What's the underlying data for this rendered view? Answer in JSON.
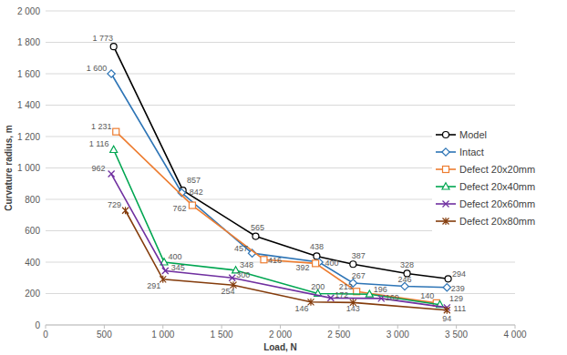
{
  "chart_data": {
    "type": "line",
    "x_label": "Load, N",
    "y_label": "Curvature radius, m",
    "xlim": [
      0,
      4000
    ],
    "ylim": [
      0,
      2000
    ],
    "xticks": [
      0,
      500,
      {
        "value": 1000,
        "label": "1 000"
      },
      {
        "value": 1500,
        "label": "1 500"
      },
      {
        "value": 2000,
        "label": "2 000"
      },
      {
        "value": 2500,
        "label": "2 500"
      },
      {
        "value": 3000,
        "label": "3 000"
      },
      {
        "value": 3500,
        "label": "3 500"
      },
      {
        "value": 4000,
        "label": "4 000"
      }
    ],
    "yticks": [
      0,
      200,
      400,
      600,
      800,
      {
        "value": 1000,
        "label": "1 000"
      },
      {
        "value": 1200,
        "label": "1 200"
      },
      {
        "value": 1400,
        "label": "1 400"
      },
      {
        "value": 1600,
        "label": "1 600"
      },
      {
        "value": 1800,
        "label": "1 800"
      },
      {
        "value": 2000,
        "label": "2 000"
      }
    ],
    "grid": true,
    "legend": "right",
    "data_labels": true,
    "series": [
      {
        "name": "Model",
        "color": "#000000",
        "marker": "circle",
        "line_style": "solid",
        "x": [
          580,
          1170,
          1790,
          2310,
          2620,
          3080,
          3430
        ],
        "values": [
          1773,
          857,
          565,
          438,
          387,
          328,
          294
        ],
        "value_labels": [
          "1 773",
          "857",
          "565",
          "438",
          "387",
          "328",
          "294"
        ]
      },
      {
        "name": "Intact",
        "color": "#2e75b6",
        "marker": "diamond",
        "line_style": "solid",
        "x": [
          560,
          1160,
          1760,
          2330,
          2620,
          3060,
          3420
        ],
        "values": [
          1600,
          842,
          457,
          400,
          267,
          246,
          239
        ],
        "value_labels": [
          "1 600",
          "842",
          "457",
          "400",
          "267",
          "246",
          "239"
        ]
      },
      {
        "name": "Defect 20x20mm",
        "color": "#ed7d31",
        "marker": "square",
        "line_style": "solid",
        "x": [
          600,
          1250,
          1860,
          2300,
          2650,
          3330
        ],
        "values": [
          1231,
          762,
          416,
          392,
          213,
          140
        ],
        "value_labels": [
          "1 231",
          "762",
          "416",
          "392",
          "213",
          "140"
        ]
      },
      {
        "name": "Defect 20x40mm",
        "color": "#00a651",
        "marker": "triangle",
        "line_style": "solid",
        "x": [
          580,
          1010,
          1620,
          2320,
          2760,
          3360
        ],
        "values": [
          1116,
          400,
          348,
          200,
          196,
          129
        ],
        "value_labels": [
          "1 116",
          "400",
          "348",
          "200",
          "196",
          "129"
        ]
      },
      {
        "name": "Defect 20x60mm",
        "color": "#7030a0",
        "marker": "x",
        "line_style": "solid",
        "x": [
          560,
          1020,
          1590,
          2430,
          2860,
          3420
        ],
        "values": [
          962,
          345,
          300,
          172,
          169,
          111
        ],
        "value_labels": [
          "962",
          "345",
          "300",
          "172",
          "169",
          "111"
        ]
      },
      {
        "name": "Defect 20x80mm",
        "color": "#843c0c",
        "marker": "star",
        "line_style": "solid",
        "x": [
          680,
          1000,
          1600,
          2260,
          2620,
          3420
        ],
        "values": [
          729,
          291,
          254,
          146,
          143,
          94
        ],
        "value_labels": [
          "729",
          "291",
          "254",
          "146",
          "143",
          "94"
        ]
      }
    ]
  }
}
